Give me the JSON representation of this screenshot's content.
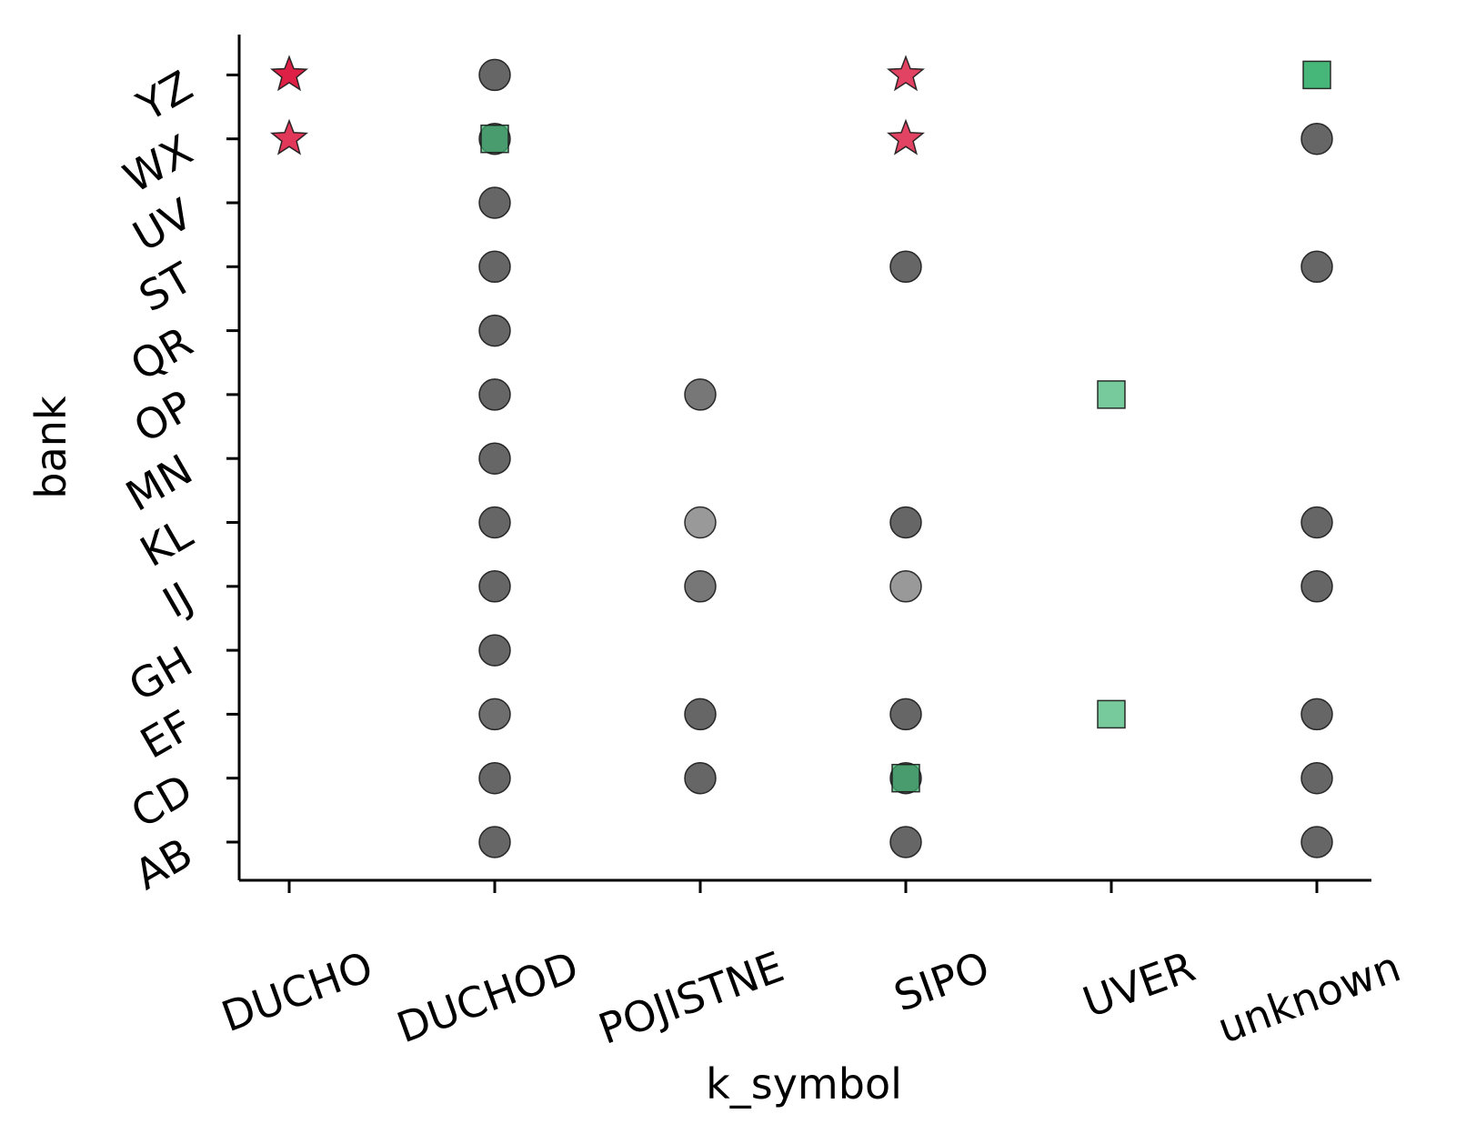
{
  "chart_data": {
    "type": "scatter",
    "xlabel": "k_symbol",
    "ylabel": "bank",
    "x_categories": [
      "DUCHO",
      "DUCHOD",
      "POJISTNE",
      "SIPO",
      "UVER",
      "unknown"
    ],
    "y_categories": [
      "AB",
      "CD",
      "EF",
      "GH",
      "IJ",
      "KL",
      "MN",
      "OP",
      "QR",
      "ST",
      "UV",
      "WX",
      "YZ"
    ],
    "grid": false,
    "legend": "none",
    "marker_colors": {
      "circle": "#555555",
      "square": "#3cb371",
      "star": "#dc143c"
    },
    "points": [
      {
        "x": "DUCHO",
        "y": "YZ",
        "marker": "star",
        "opacity": 0.95
      },
      {
        "x": "DUCHO",
        "y": "WX",
        "marker": "star",
        "opacity": 0.85
      },
      {
        "x": "DUCHOD",
        "y": "YZ",
        "marker": "circle",
        "opacity": 0.9
      },
      {
        "x": "DUCHOD",
        "y": "WX",
        "marker": "circle",
        "opacity": 0.9
      },
      {
        "x": "DUCHOD",
        "y": "WX",
        "marker": "square",
        "opacity": 0.7
      },
      {
        "x": "DUCHOD",
        "y": "UV",
        "marker": "circle",
        "opacity": 0.9
      },
      {
        "x": "DUCHOD",
        "y": "ST",
        "marker": "circle",
        "opacity": 0.9
      },
      {
        "x": "DUCHOD",
        "y": "QR",
        "marker": "circle",
        "opacity": 0.9
      },
      {
        "x": "DUCHOD",
        "y": "OP",
        "marker": "circle",
        "opacity": 0.9
      },
      {
        "x": "DUCHOD",
        "y": "MN",
        "marker": "circle",
        "opacity": 0.9
      },
      {
        "x": "DUCHOD",
        "y": "KL",
        "marker": "circle",
        "opacity": 0.9
      },
      {
        "x": "DUCHOD",
        "y": "IJ",
        "marker": "circle",
        "opacity": 0.9
      },
      {
        "x": "DUCHOD",
        "y": "GH",
        "marker": "circle",
        "opacity": 0.9
      },
      {
        "x": "DUCHOD",
        "y": "EF",
        "marker": "circle",
        "opacity": 0.85
      },
      {
        "x": "DUCHOD",
        "y": "CD",
        "marker": "circle",
        "opacity": 0.9
      },
      {
        "x": "DUCHOD",
        "y": "AB",
        "marker": "circle",
        "opacity": 0.9
      },
      {
        "x": "POJISTNE",
        "y": "OP",
        "marker": "circle",
        "opacity": 0.8
      },
      {
        "x": "POJISTNE",
        "y": "KL",
        "marker": "circle",
        "opacity": 0.6
      },
      {
        "x": "POJISTNE",
        "y": "IJ",
        "marker": "circle",
        "opacity": 0.8
      },
      {
        "x": "POJISTNE",
        "y": "EF",
        "marker": "circle",
        "opacity": 0.9
      },
      {
        "x": "POJISTNE",
        "y": "CD",
        "marker": "circle",
        "opacity": 0.9
      },
      {
        "x": "SIPO",
        "y": "YZ",
        "marker": "star",
        "opacity": 0.8
      },
      {
        "x": "SIPO",
        "y": "WX",
        "marker": "star",
        "opacity": 0.8
      },
      {
        "x": "SIPO",
        "y": "ST",
        "marker": "circle",
        "opacity": 0.9
      },
      {
        "x": "SIPO",
        "y": "KL",
        "marker": "circle",
        "opacity": 0.9
      },
      {
        "x": "SIPO",
        "y": "IJ",
        "marker": "circle",
        "opacity": 0.6
      },
      {
        "x": "SIPO",
        "y": "EF",
        "marker": "circle",
        "opacity": 0.9
      },
      {
        "x": "SIPO",
        "y": "CD",
        "marker": "circle",
        "opacity": 0.9
      },
      {
        "x": "SIPO",
        "y": "CD",
        "marker": "square",
        "opacity": 0.7
      },
      {
        "x": "SIPO",
        "y": "AB",
        "marker": "circle",
        "opacity": 0.9
      },
      {
        "x": "UVER",
        "y": "OP",
        "marker": "square",
        "opacity": 0.7
      },
      {
        "x": "UVER",
        "y": "EF",
        "marker": "square",
        "opacity": 0.7
      },
      {
        "x": "unknown",
        "y": "YZ",
        "marker": "square",
        "opacity": 0.95
      },
      {
        "x": "unknown",
        "y": "WX",
        "marker": "circle",
        "opacity": 0.9
      },
      {
        "x": "unknown",
        "y": "ST",
        "marker": "circle",
        "opacity": 0.9
      },
      {
        "x": "unknown",
        "y": "KL",
        "marker": "circle",
        "opacity": 0.9
      },
      {
        "x": "unknown",
        "y": "IJ",
        "marker": "circle",
        "opacity": 0.9
      },
      {
        "x": "unknown",
        "y": "EF",
        "marker": "circle",
        "opacity": 0.9
      },
      {
        "x": "unknown",
        "y": "CD",
        "marker": "circle",
        "opacity": 0.9
      },
      {
        "x": "unknown",
        "y": "AB",
        "marker": "circle",
        "opacity": 0.9
      }
    ]
  }
}
